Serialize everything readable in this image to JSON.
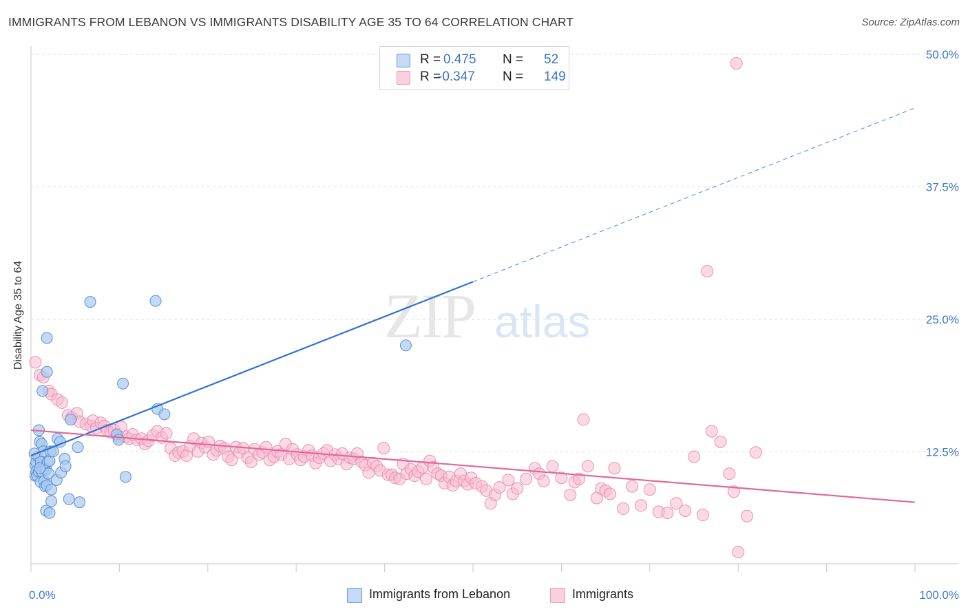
{
  "title": "IMMIGRANTS FROM LEBANON VS IMMIGRANTS DISABILITY AGE 35 TO 64 CORRELATION CHART",
  "source": "Source: ZipAtlas.com",
  "watermark": {
    "zip": "ZIP",
    "atlas": "atlas"
  },
  "legend": {
    "r_label": "R =",
    "n_label": "N =",
    "rows": [
      {
        "r": "0.475",
        "n": "52"
      },
      {
        "r": "-0.347",
        "n": "149"
      }
    ]
  },
  "colors": {
    "blue_fill": "#a9c9f0",
    "blue_stroke": "#5b8fd6",
    "blue_line": "#2f72d4",
    "pink_fill": "#f8bcd0",
    "pink_stroke": "#ec8fb0",
    "pink_line": "#e2689a",
    "tick_label": "#3d78c9",
    "grid": "#dcdcdc"
  },
  "chart_data": {
    "type": "scatter",
    "title": "IMMIGRANTS FROM LEBANON VS IMMIGRANTS DISABILITY AGE 35 TO 64 CORRELATION CHART",
    "xlabel": "",
    "ylabel": "Disability Age 35 to 64",
    "xlim": [
      0,
      100
    ],
    "ylim": [
      0,
      50
    ],
    "x_tick_labels": [
      "0.0%",
      "100.0%"
    ],
    "y_ticks": [
      12.5,
      25.0,
      37.5,
      50.0
    ],
    "y_tick_labels": [
      "12.5%",
      "25.0%",
      "37.5%",
      "50.0%"
    ],
    "grid": true,
    "legend_placement": "top-center",
    "series": [
      {
        "name": "Immigrants from Lebanon",
        "color": "#a9c9f0",
        "trend": {
          "x": [
            0,
            50
          ],
          "y": [
            10.2,
            26.6
          ],
          "dashed_extension_to": [
            100,
            43.0
          ]
        },
        "points": [
          [
            0.5,
            9.3
          ],
          [
            0.5,
            8.3
          ],
          [
            0.6,
            9.6
          ],
          [
            0.6,
            8.7
          ],
          [
            0.7,
            8.3
          ],
          [
            0.8,
            10.1
          ],
          [
            0.9,
            12.6
          ],
          [
            0.9,
            8.7
          ],
          [
            1.0,
            11.5
          ],
          [
            1.1,
            9.6
          ],
          [
            1.1,
            7.7
          ],
          [
            1.2,
            8.7
          ],
          [
            1.2,
            11.3
          ],
          [
            1.3,
            16.3
          ],
          [
            1.4,
            10.6
          ],
          [
            1.5,
            9.0
          ],
          [
            1.5,
            7.8
          ],
          [
            1.6,
            7.3
          ],
          [
            1.7,
            8.9
          ],
          [
            1.7,
            5.0
          ],
          [
            1.8,
            21.3
          ],
          [
            1.8,
            18.1
          ],
          [
            1.8,
            7.4
          ],
          [
            1.9,
            9.6
          ],
          [
            2.0,
            8.5
          ],
          [
            2.1,
            9.7
          ],
          [
            2.1,
            4.8
          ],
          [
            2.2,
            10.6
          ],
          [
            2.3,
            5.9
          ],
          [
            2.3,
            7.0
          ],
          [
            2.5,
            10.6
          ],
          [
            2.9,
            7.9
          ],
          [
            3.0,
            11.8
          ],
          [
            3.3,
            11.5
          ],
          [
            3.4,
            8.6
          ],
          [
            3.8,
            9.9
          ],
          [
            3.9,
            9.2
          ],
          [
            4.3,
            6.1
          ],
          [
            4.5,
            13.6
          ],
          [
            5.3,
            11.0
          ],
          [
            5.5,
            5.8
          ],
          [
            6.7,
            24.7
          ],
          [
            9.7,
            12.2
          ],
          [
            9.9,
            11.7
          ],
          [
            10.4,
            17.0
          ],
          [
            10.7,
            8.2
          ],
          [
            14.1,
            24.8
          ],
          [
            14.3,
            14.6
          ],
          [
            15.1,
            14.1
          ],
          [
            42.4,
            20.6
          ],
          [
            0.4,
            10.4
          ],
          [
            1.0,
            9.0
          ]
        ]
      },
      {
        "name": "Immigrants",
        "color": "#f8bcd0",
        "trend": {
          "x": [
            0,
            100
          ],
          "y": [
            12.6,
            5.8
          ]
        },
        "points": [
          [
            0.5,
            19.0
          ],
          [
            1.0,
            17.8
          ],
          [
            1.4,
            17.6
          ],
          [
            2.0,
            16.3
          ],
          [
            2.3,
            16.0
          ],
          [
            3.0,
            15.5
          ],
          [
            3.5,
            15.2
          ],
          [
            4.2,
            14.0
          ],
          [
            4.6,
            13.8
          ],
          [
            5.2,
            14.2
          ],
          [
            5.5,
            13.4
          ],
          [
            6.2,
            13.2
          ],
          [
            6.8,
            13.0
          ],
          [
            7.0,
            13.5
          ],
          [
            7.4,
            12.8
          ],
          [
            7.9,
            13.3
          ],
          [
            8.3,
            13.0
          ],
          [
            8.6,
            12.6
          ],
          [
            9.0,
            12.4
          ],
          [
            9.4,
            12.6
          ],
          [
            9.9,
            12.0
          ],
          [
            10.2,
            12.9
          ],
          [
            10.7,
            12.0
          ],
          [
            11.1,
            11.8
          ],
          [
            11.5,
            12.2
          ],
          [
            12.0,
            11.7
          ],
          [
            12.5,
            11.8
          ],
          [
            12.9,
            11.3
          ],
          [
            13.3,
            11.6
          ],
          [
            13.8,
            12.1
          ],
          [
            14.3,
            12.5
          ],
          [
            14.8,
            11.9
          ],
          [
            15.3,
            12.3
          ],
          [
            15.8,
            10.9
          ],
          [
            16.3,
            10.2
          ],
          [
            16.7,
            10.5
          ],
          [
            17.2,
            10.6
          ],
          [
            17.6,
            10.2
          ],
          [
            18.0,
            11.1
          ],
          [
            18.4,
            11.8
          ],
          [
            18.9,
            10.6
          ],
          [
            19.3,
            11.4
          ],
          [
            19.7,
            11.0
          ],
          [
            20.1,
            11.5
          ],
          [
            20.6,
            10.3
          ],
          [
            21.0,
            10.7
          ],
          [
            21.4,
            11.1
          ],
          [
            21.9,
            10.9
          ],
          [
            22.3,
            10.1
          ],
          [
            22.7,
            9.8
          ],
          [
            23.2,
            11.0
          ],
          [
            23.6,
            10.5
          ],
          [
            24.0,
            10.9
          ],
          [
            24.5,
            10.0
          ],
          [
            24.9,
            9.6
          ],
          [
            25.3,
            10.8
          ],
          [
            25.8,
            10.3
          ],
          [
            26.2,
            10.5
          ],
          [
            26.6,
            11.0
          ],
          [
            27.0,
            9.8
          ],
          [
            27.5,
            10.1
          ],
          [
            27.9,
            10.6
          ],
          [
            28.3,
            10.3
          ],
          [
            28.8,
            11.3
          ],
          [
            29.2,
            9.9
          ],
          [
            29.6,
            10.8
          ],
          [
            30.1,
            10.3
          ],
          [
            30.5,
            9.8
          ],
          [
            30.9,
            10.1
          ],
          [
            31.4,
            10.7
          ],
          [
            31.8,
            10.2
          ],
          [
            32.2,
            9.5
          ],
          [
            32.6,
            10.0
          ],
          [
            33.1,
            10.4
          ],
          [
            33.5,
            10.7
          ],
          [
            33.9,
            9.7
          ],
          [
            34.4,
            10.3
          ],
          [
            34.8,
            9.9
          ],
          [
            35.2,
            10.4
          ],
          [
            35.7,
            9.4
          ],
          [
            36.1,
            10.0
          ],
          [
            36.5,
            9.9
          ],
          [
            36.9,
            10.4
          ],
          [
            37.4,
            9.6
          ],
          [
            37.8,
            9.3
          ],
          [
            38.2,
            8.6
          ],
          [
            38.7,
            9.5
          ],
          [
            39.1,
            9.2
          ],
          [
            39.5,
            8.8
          ],
          [
            39.9,
            10.9
          ],
          [
            40.4,
            8.4
          ],
          [
            40.8,
            8.4
          ],
          [
            41.2,
            8.1
          ],
          [
            41.7,
            8.0
          ],
          [
            42.1,
            9.4
          ],
          [
            42.5,
            8.5
          ],
          [
            43.0,
            8.9
          ],
          [
            43.4,
            8.3
          ],
          [
            43.8,
            8.7
          ],
          [
            44.3,
            9.1
          ],
          [
            44.7,
            8.0
          ],
          [
            45.1,
            9.7
          ],
          [
            45.5,
            9.1
          ],
          [
            46.0,
            8.5
          ],
          [
            46.4,
            8.3
          ],
          [
            46.8,
            7.6
          ],
          [
            47.3,
            8.2
          ],
          [
            47.7,
            7.4
          ],
          [
            48.1,
            7.8
          ],
          [
            48.6,
            8.5
          ],
          [
            49.0,
            7.8
          ],
          [
            49.4,
            7.5
          ],
          [
            49.8,
            8.1
          ],
          [
            50.3,
            7.6
          ],
          [
            51.0,
            7.3
          ],
          [
            51.5,
            6.9
          ],
          [
            52.0,
            5.7
          ],
          [
            52.5,
            6.5
          ],
          [
            53.0,
            7.2
          ],
          [
            54.0,
            7.9
          ],
          [
            54.5,
            6.6
          ],
          [
            55.0,
            7.1
          ],
          [
            56.0,
            8.0
          ],
          [
            57.0,
            9.0
          ],
          [
            57.5,
            8.5
          ],
          [
            58.0,
            7.8
          ],
          [
            59.0,
            9.2
          ],
          [
            60.0,
            8.1
          ],
          [
            61.0,
            6.5
          ],
          [
            61.5,
            7.7
          ],
          [
            62.0,
            8.0
          ],
          [
            63.0,
            9.2
          ],
          [
            64.0,
            6.2
          ],
          [
            64.5,
            7.1
          ],
          [
            65.0,
            6.9
          ],
          [
            65.5,
            6.6
          ],
          [
            66.0,
            9.0
          ],
          [
            67.0,
            5.2
          ],
          [
            68.0,
            7.3
          ],
          [
            69.0,
            5.5
          ],
          [
            70.0,
            7.0
          ],
          [
            71.0,
            4.9
          ],
          [
            72.0,
            4.8
          ],
          [
            73.0,
            5.7
          ],
          [
            74.0,
            5.0
          ],
          [
            75.0,
            10.1
          ],
          [
            76.0,
            4.6
          ],
          [
            77.0,
            12.5
          ],
          [
            78.0,
            11.5
          ],
          [
            79.0,
            8.5
          ],
          [
            80.0,
            1.1
          ],
          [
            82.0,
            10.5
          ],
          [
            79.5,
            6.8
          ],
          [
            81.0,
            4.5
          ],
          [
            62.5,
            13.6
          ],
          [
            76.5,
            27.6
          ],
          [
            79.8,
            47.2
          ]
        ]
      }
    ]
  },
  "bottom_legend": {
    "series1": "Immigrants from Lebanon",
    "series2": "Immigrants"
  }
}
